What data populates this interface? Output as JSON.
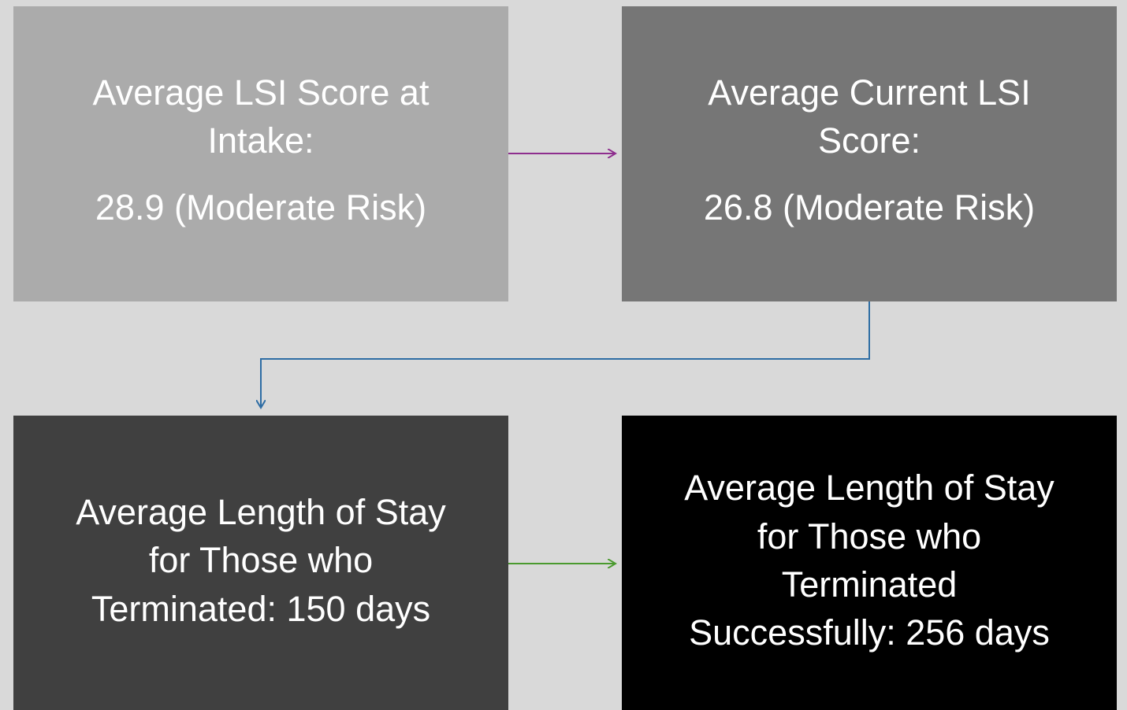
{
  "nodes": [
    {
      "lines": [
        "Average LSI Score at",
        "Intake:"
      ],
      "value": "28.9 (Moderate Risk)"
    },
    {
      "lines": [
        "Average Current LSI",
        "Score:"
      ],
      "value": "26.8 (Moderate Risk)"
    },
    {
      "lines": [
        "Average Length of Stay",
        "for Those who",
        "Terminated: 150 days"
      ]
    },
    {
      "lines": [
        "Average Length of Stay",
        "for Those who",
        "Terminated",
        "Successfully: 256 days"
      ]
    }
  ]
}
